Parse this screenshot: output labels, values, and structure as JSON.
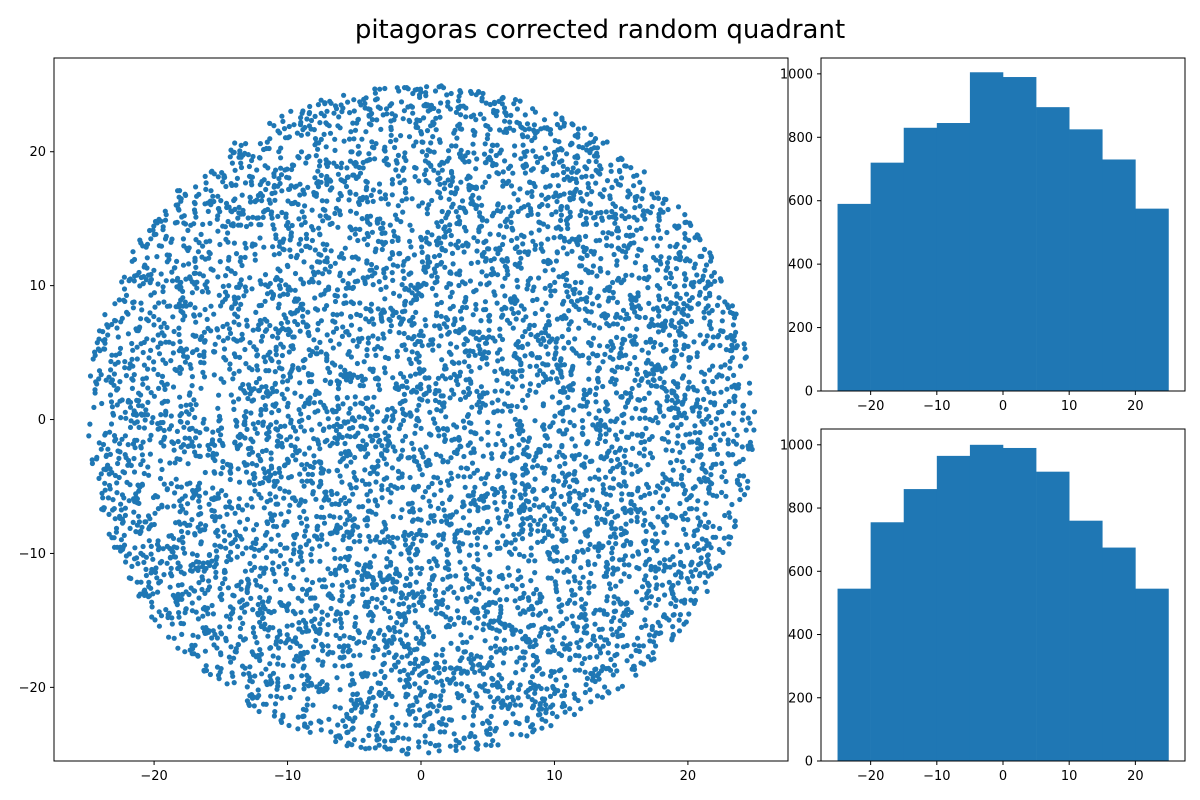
{
  "title": "pitagoras corrected random quadrant",
  "colors": {
    "series": "#1f77b4",
    "axes": "#000000",
    "background": "#ffffff"
  },
  "chart_data": [
    {
      "type": "scatter",
      "description_of_distribution": "approximately 7000 points uniformly distributed inside a disk of radius 25 centered at (0, 0)",
      "n_points": 7000,
      "radius": 25,
      "center": [
        0,
        0
      ],
      "xlim": [
        -27.5,
        27.5
      ],
      "ylim": [
        -25.5,
        27.0
      ],
      "xticks": [
        -20,
        -10,
        0,
        10,
        20
      ],
      "yticks": [
        -20,
        -10,
        0,
        10,
        20
      ],
      "xticklabels": [
        "−20",
        "−10",
        "0",
        "10",
        "20"
      ],
      "yticklabels": [
        "−20",
        "−10",
        "0",
        "10",
        "20"
      ],
      "grid": false
    },
    {
      "type": "bar",
      "kind": "histogram",
      "bin_edges": [
        -25,
        -20,
        -15,
        -10,
        -5,
        0,
        5,
        10,
        15,
        20,
        25
      ],
      "values": [
        590,
        720,
        830,
        845,
        1005,
        990,
        895,
        825,
        730,
        575
      ],
      "xlim": [
        -27.5,
        27.5
      ],
      "ylim": [
        0,
        1050
      ],
      "xticks": [
        -20,
        -10,
        0,
        10,
        20
      ],
      "yticks": [
        0,
        200,
        400,
        600,
        800,
        1000
      ],
      "xticklabels": [
        "−20",
        "−10",
        "0",
        "10",
        "20"
      ],
      "yticklabels": [
        "0",
        "200",
        "400",
        "600",
        "800",
        "1000"
      ],
      "grid": false
    },
    {
      "type": "bar",
      "kind": "histogram",
      "bin_edges": [
        -25,
        -20,
        -15,
        -10,
        -5,
        0,
        5,
        10,
        15,
        20,
        25
      ],
      "values": [
        545,
        755,
        860,
        965,
        1000,
        990,
        915,
        760,
        675,
        545
      ],
      "xlim": [
        -27.5,
        27.5
      ],
      "ylim": [
        0,
        1050
      ],
      "xticks": [
        -20,
        -10,
        0,
        10,
        20
      ],
      "yticks": [
        0,
        200,
        400,
        600,
        800,
        1000
      ],
      "xticklabels": [
        "−20",
        "−10",
        "0",
        "10",
        "20"
      ],
      "yticklabels": [
        "0",
        "200",
        "400",
        "600",
        "800",
        "1000"
      ],
      "grid": false
    }
  ]
}
